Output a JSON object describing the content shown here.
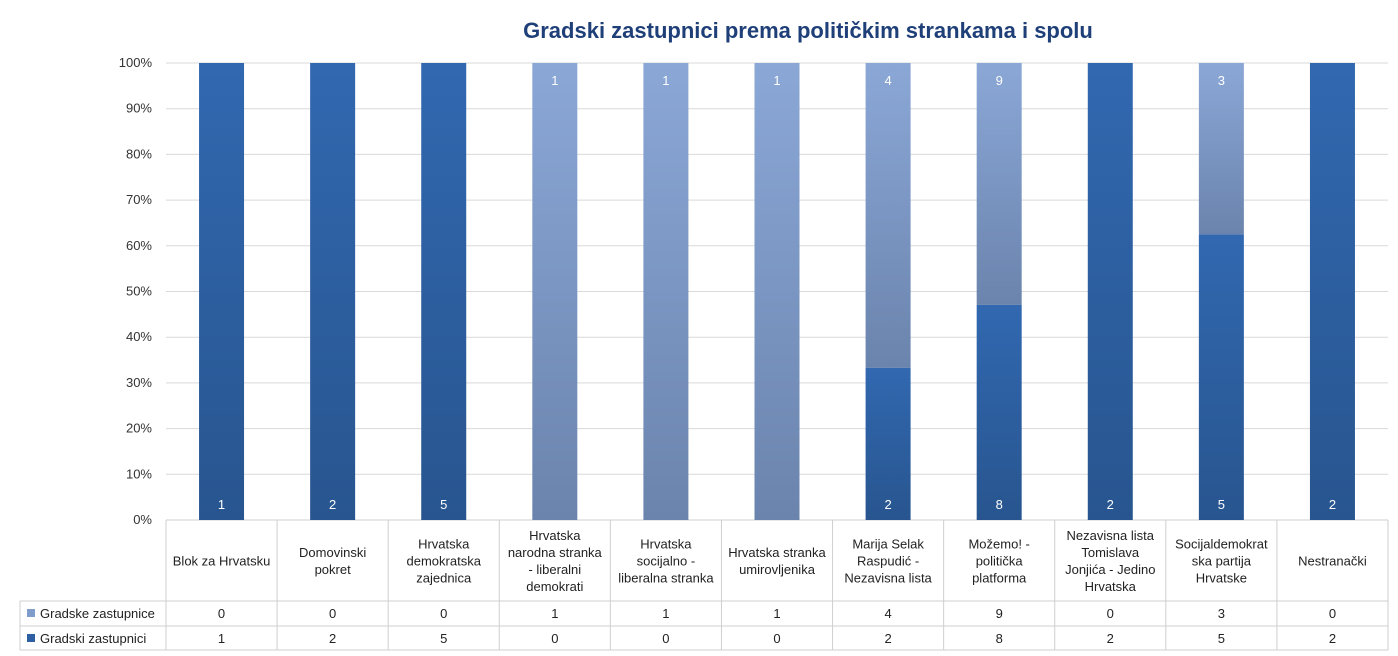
{
  "chart_data": {
    "type": "bar",
    "stacked": "percent",
    "title": "Gradski zastupnici prema političkim strankama i spolu",
    "categories": [
      "Blok za Hrvatsku",
      "Domovinski pokret",
      "Hrvatska demokratska zajednica",
      "Hrvatska narodna stranka - liberalni demokrati",
      "Hrvatska socijalno - liberalna stranka",
      "Hrvatska stranka umirovljenika",
      "Marija Selak Raspudić - Nezavisna lista",
      "Možemo! - politička platforma",
      "Nezavisna lista Tomislava Jonjića - Jedino Hrvatska",
      "Socijaldemokratska partija Hrvatske",
      "Nestranački"
    ],
    "category_label_lines": [
      [
        "Blok za Hrvatsku"
      ],
      [
        "Domovinski",
        "pokret"
      ],
      [
        "Hrvatska",
        "demokratska",
        "zajednica"
      ],
      [
        "Hrvatska",
        "narodna stranka",
        "- liberalni",
        "demokrati"
      ],
      [
        "Hrvatska",
        "socijalno -",
        "liberalna stranka"
      ],
      [
        "Hrvatska stranka",
        "umirovljenika"
      ],
      [
        "Marija Selak",
        "Raspudić -",
        "Nezavisna lista"
      ],
      [
        "Možemo! -",
        "politička",
        "platforma"
      ],
      [
        "Nezavisna lista",
        "Tomislava",
        "Jonjića - Jedino",
        "Hrvatska"
      ],
      [
        "Socijaldemokrat",
        "ska partija",
        "Hrvatske"
      ],
      [
        "Nestranački"
      ]
    ],
    "series": [
      {
        "name": "Gradski zastupnici",
        "values": [
          1,
          2,
          5,
          0,
          0,
          0,
          2,
          8,
          2,
          5,
          2
        ],
        "color": "#2e5fa3"
      },
      {
        "name": "Gradske zastupnice",
        "values": [
          0,
          0,
          0,
          1,
          1,
          1,
          4,
          9,
          0,
          3,
          0
        ],
        "color": "#7f9ccb"
      }
    ],
    "y_ticks": [
      "0%",
      "10%",
      "20%",
      "30%",
      "40%",
      "50%",
      "60%",
      "70%",
      "80%",
      "90%",
      "100%"
    ],
    "ylim": [
      0,
      100
    ],
    "grid": true,
    "legend": "data-table"
  }
}
